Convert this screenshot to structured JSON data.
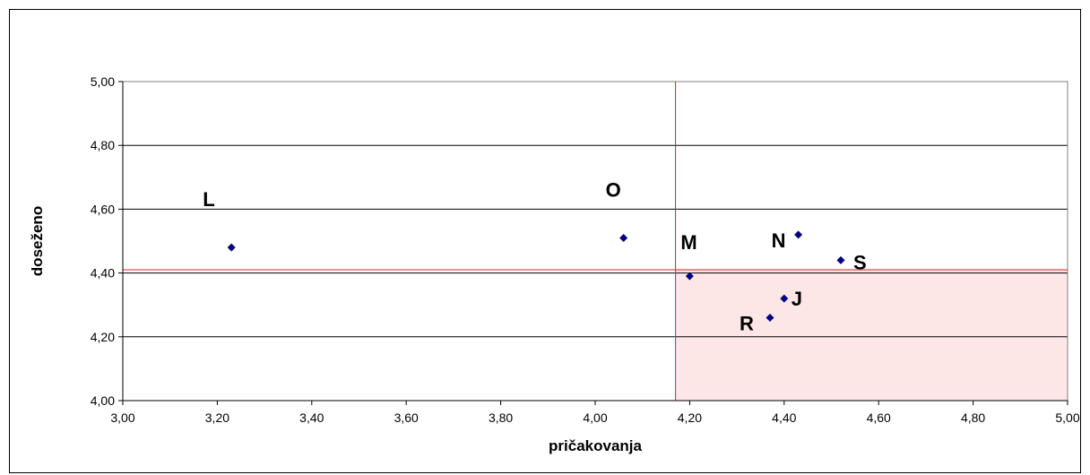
{
  "chart_data": {
    "type": "scatter",
    "title": "",
    "xlabel": "pričakovanja",
    "ylabel": "doseženo",
    "xlim": [
      3.0,
      5.0
    ],
    "ylim": [
      4.0,
      5.0
    ],
    "x_ticks": [
      "3,00",
      "3,20",
      "3,40",
      "3,60",
      "3,80",
      "4,00",
      "4,20",
      "4,40",
      "4,60",
      "4,80",
      "5,00"
    ],
    "y_ticks": [
      "4,00",
      "4,20",
      "4,40",
      "4,60",
      "4,80",
      "5,00"
    ],
    "grid": "horizontal",
    "legend": "none",
    "points": [
      {
        "label": "L",
        "x": 3.23,
        "y": 4.48
      },
      {
        "label": "O",
        "x": 4.06,
        "y": 4.51
      },
      {
        "label": "M",
        "x": 4.2,
        "y": 4.39
      },
      {
        "label": "N",
        "x": 4.43,
        "y": 4.52
      },
      {
        "label": "S",
        "x": 4.52,
        "y": 4.44
      },
      {
        "label": "J",
        "x": 4.4,
        "y": 4.32
      },
      {
        "label": "R",
        "x": 4.37,
        "y": 4.26
      }
    ],
    "reference_lines": {
      "x": 4.17,
      "y": 4.41
    },
    "colors": {
      "marker": "#000080",
      "reference_line": "#e02020",
      "highlight_region": "#fde6e6",
      "gridline": "#000000",
      "plot_border": "#808080"
    }
  }
}
